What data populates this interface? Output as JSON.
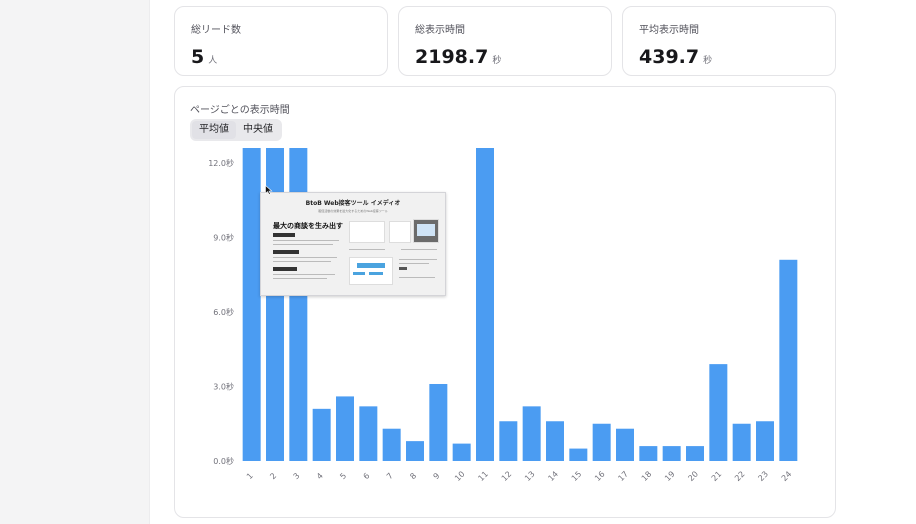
{
  "stats": [
    {
      "label": "総リード数",
      "value": "5",
      "unit": "人"
    },
    {
      "label": "総表示時間",
      "value": "2198.7",
      "unit": "秒"
    },
    {
      "label": "平均表示時間",
      "value": "439.7",
      "unit": "秒"
    }
  ],
  "chart_section": {
    "title": "ページごとの表示時間",
    "toggle": {
      "options": [
        "平均値",
        "中央値"
      ],
      "selected": "平均値"
    }
  },
  "chart_data": {
    "type": "bar",
    "title": "ページごとの表示時間",
    "xlabel": "",
    "ylabel": "",
    "ylim": [
      0,
      12.6
    ],
    "y_ticks": [
      "0.0秒",
      "3.0秒",
      "6.0秒",
      "9.0秒",
      "12.0秒"
    ],
    "y_tick_values": [
      0,
      3,
      6,
      9,
      12
    ],
    "categories": [
      "1",
      "2",
      "3",
      "4",
      "5",
      "6",
      "7",
      "8",
      "9",
      "10",
      "11",
      "12",
      "13",
      "14",
      "15",
      "16",
      "17",
      "18",
      "19",
      "20",
      "21",
      "22",
      "23",
      "24"
    ],
    "values": [
      12.6,
      12.6,
      12.6,
      2.1,
      2.6,
      2.2,
      1.3,
      0.8,
      3.1,
      0.7,
      12.6,
      1.6,
      2.2,
      1.6,
      0.5,
      1.5,
      1.3,
      0.6,
      0.6,
      0.6,
      3.9,
      1.5,
      1.6,
      8.1
    ],
    "bar_color": "#4b9cf2"
  },
  "hover_preview": {
    "title": "BtoB Web接客ツール イメディオ",
    "subtitle": "販促活動の効果を最大化するためのWeb接客ツール",
    "headline": "最大の商談を生み出す"
  }
}
